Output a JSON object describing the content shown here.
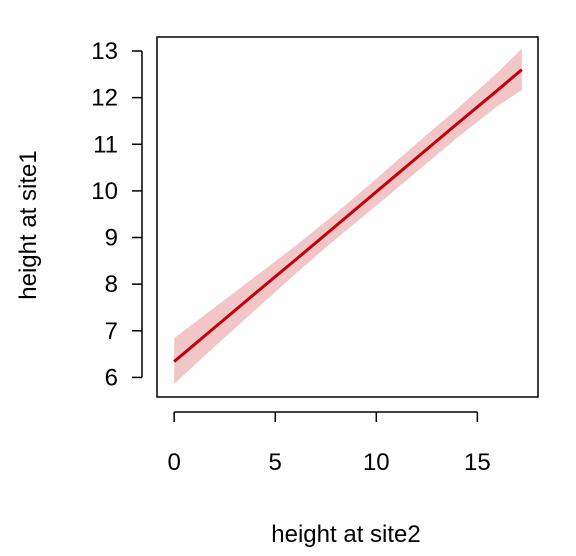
{
  "chart_data": {
    "type": "line",
    "title": "",
    "xlabel": "height at site2",
    "ylabel": "height at site1",
    "xlim": [
      -0.85,
      18.0
    ],
    "ylim": [
      5.58,
      13.3
    ],
    "x_ticks": [
      0,
      5,
      10,
      15
    ],
    "y_ticks": [
      6,
      7,
      8,
      9,
      10,
      11,
      12,
      13
    ],
    "grid": false,
    "legend": "none",
    "series": [
      {
        "x": [
          0,
          2,
          4,
          6,
          8,
          10,
          12,
          14,
          16,
          17.2
        ],
        "y": [
          6.34,
          7.07,
          7.8,
          8.52,
          9.25,
          9.98,
          10.71,
          11.44,
          12.16,
          12.6
        ]
      }
    ],
    "confidence_band": {
      "x": [
        0,
        2,
        4,
        6,
        8,
        10,
        12,
        14,
        16,
        17.2
      ],
      "lower": [
        5.86,
        6.66,
        7.44,
        8.22,
        8.97,
        9.68,
        10.41,
        11.14,
        11.82,
        12.16
      ],
      "upper": [
        6.84,
        7.5,
        8.16,
        8.82,
        9.52,
        10.26,
        11.02,
        11.76,
        12.54,
        13.05
      ]
    },
    "colors": {
      "line": "#c0000b",
      "band": "#f2c6c6",
      "axis": "#000000"
    }
  }
}
